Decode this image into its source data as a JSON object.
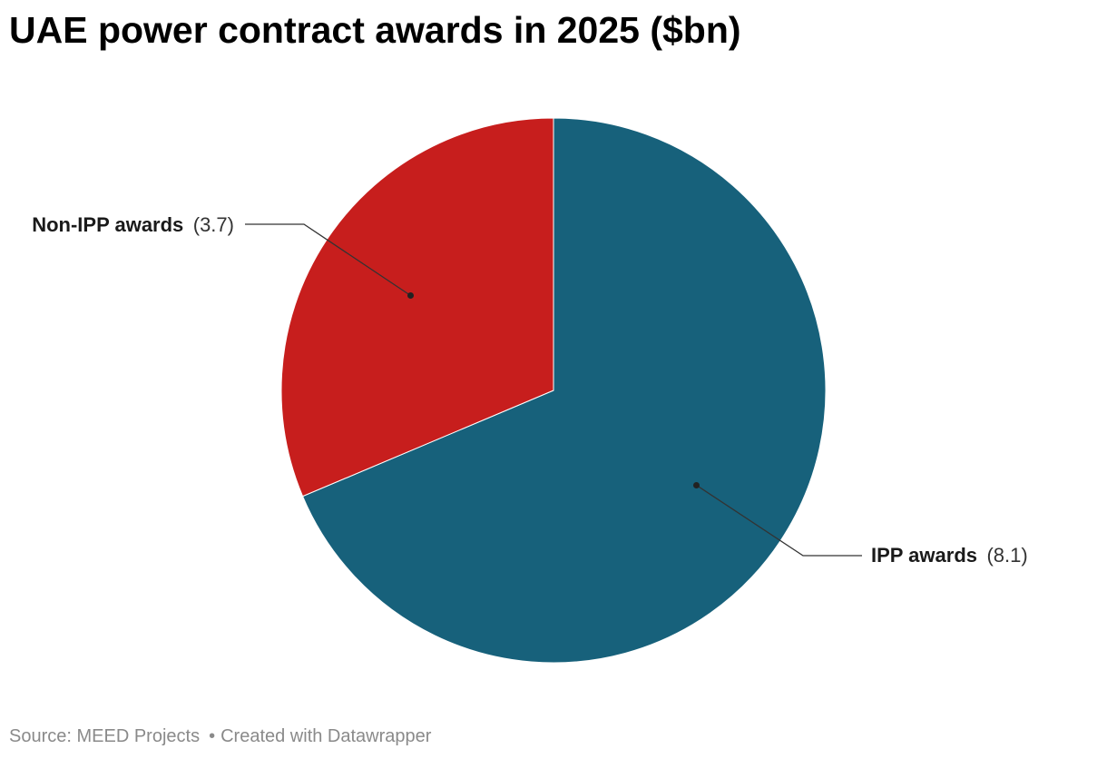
{
  "chart_data": {
    "type": "pie",
    "title": "UAE power contract awards in 2025 ($bn)",
    "slices": [
      {
        "label": "IPP awards",
        "value": 8.1,
        "value_text": "(8.1)",
        "color": "#17617b"
      },
      {
        "label": "Non-IPP awards",
        "value": 3.7,
        "value_text": "(3.7)",
        "color": "#c71e1d"
      }
    ],
    "start_angle_deg": 0,
    "direction": "clockwise"
  },
  "footer": {
    "source": "Source: MEED Projects",
    "separator": "•",
    "credit": "Created with Datawrapper"
  }
}
